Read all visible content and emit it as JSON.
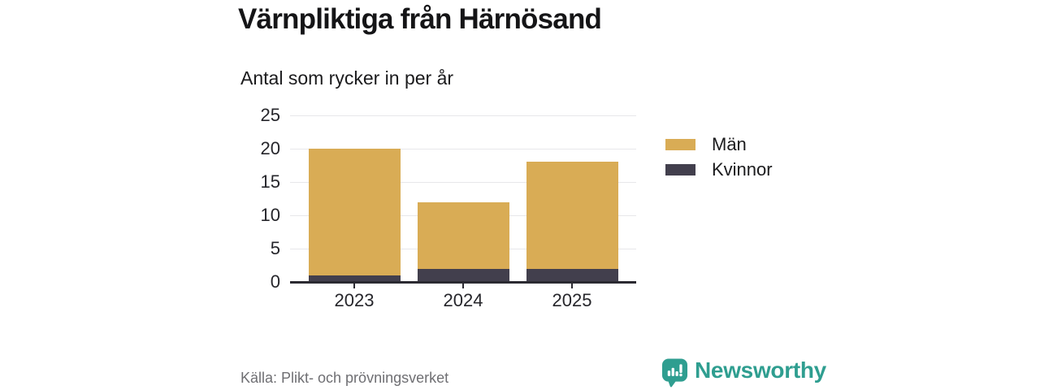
{
  "header": {
    "title": "Värnpliktiga från Härnösand",
    "subtitle": "Antal som rycker in per år"
  },
  "chart_data": {
    "type": "bar",
    "stacked": true,
    "title": "Värnpliktiga från Härnösand",
    "subtitle": "Antal som rycker in per år",
    "categories": [
      "2023",
      "2024",
      "2025"
    ],
    "series": [
      {
        "name": "Män",
        "color": "#D9AC55",
        "values": [
          19,
          10,
          16
        ]
      },
      {
        "name": "Kvinnor",
        "color": "#423F4D",
        "values": [
          1,
          2,
          2
        ]
      }
    ],
    "stack_order_bottom_to_top": [
      "Kvinnor",
      "Män"
    ],
    "totals": [
      20,
      12,
      18
    ],
    "y_ticks": [
      0,
      5,
      10,
      15,
      20,
      25
    ],
    "ylim": [
      0,
      25
    ],
    "xlabel": "",
    "ylabel": "",
    "grid": "horizontal",
    "legend_position": "right"
  },
  "legend": {
    "items": [
      {
        "label": "Män",
        "color": "#D9AC55"
      },
      {
        "label": "Kvinnor",
        "color": "#423F4D"
      }
    ]
  },
  "footer": {
    "source": "Källa: Plikt- och prövningsverket",
    "brand": "Newsworthy",
    "brand_color": "#2F9E90",
    "logo_icon": "bar-chart-speech-bubble-icon"
  },
  "colors": {
    "man": "#D9AC55",
    "kvinnor": "#423F4D",
    "gridline": "#E7E7EA",
    "axis": "#2B2A31",
    "source_text": "#6F6F73",
    "brand": "#2F9E90"
  }
}
